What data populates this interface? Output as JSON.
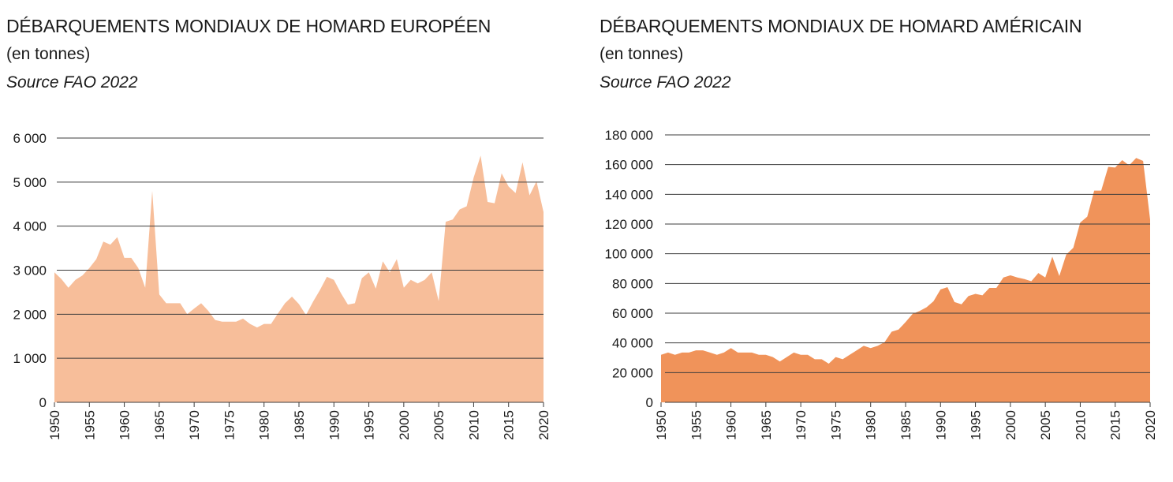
{
  "chart_data": [
    {
      "type": "area",
      "title": "DÉBARQUEMENTS MONDIAUX DE HOMARD EUROPÉEN",
      "subtitle": "(en tonnes)",
      "source": "Source FAO 2022",
      "xlabel": "",
      "ylabel": "",
      "xlim": [
        1950,
        2020
      ],
      "ylim": [
        0,
        6000
      ],
      "y_ticks": [
        0,
        1000,
        2000,
        3000,
        4000,
        5000,
        6000
      ],
      "y_tick_labels": [
        "0",
        "1 000",
        "2 000",
        "3 000",
        "4 000",
        "5 000",
        "6 000"
      ],
      "x_ticks": [
        1950,
        1955,
        1960,
        1965,
        1970,
        1975,
        1980,
        1985,
        1990,
        1995,
        2000,
        2005,
        2010,
        2015,
        2020
      ],
      "x_tick_labels": [
        "1950",
        "1955",
        "1960",
        "1965",
        "1970",
        "1975",
        "1980",
        "1985",
        "1990",
        "1995",
        "2000",
        "2005",
        "2010",
        "2015",
        "2020"
      ],
      "grid": true,
      "color": "#f7be9a",
      "x": [
        1950,
        1951,
        1952,
        1953,
        1954,
        1955,
        1956,
        1957,
        1958,
        1959,
        1960,
        1961,
        1962,
        1963,
        1964,
        1965,
        1966,
        1967,
        1968,
        1969,
        1970,
        1971,
        1972,
        1973,
        1974,
        1975,
        1976,
        1977,
        1978,
        1979,
        1980,
        1981,
        1982,
        1983,
        1984,
        1985,
        1986,
        1987,
        1988,
        1989,
        1990,
        1991,
        1992,
        1993,
        1994,
        1995,
        1996,
        1997,
        1998,
        1999,
        2000,
        2001,
        2002,
        2003,
        2004,
        2005,
        2006,
        2007,
        2008,
        2009,
        2010,
        2011,
        2012,
        2013,
        2014,
        2015,
        2016,
        2017,
        2018,
        2019,
        2020
      ],
      "values": [
        2950,
        2800,
        2600,
        2780,
        2880,
        3050,
        3250,
        3650,
        3580,
        3750,
        3280,
        3280,
        3050,
        2600,
        4800,
        2450,
        2250,
        2250,
        2250,
        2000,
        2130,
        2250,
        2080,
        1870,
        1830,
        1830,
        1830,
        1900,
        1780,
        1700,
        1780,
        1780,
        2020,
        2250,
        2400,
        2230,
        1980,
        2280,
        2550,
        2850,
        2780,
        2480,
        2220,
        2250,
        2820,
        2950,
        2580,
        3200,
        2950,
        3250,
        2600,
        2780,
        2700,
        2780,
        2950,
        2300,
        4100,
        4150,
        4380,
        4450,
        5100,
        5600,
        4550,
        4520,
        5200,
        4900,
        4750,
        5450,
        4700,
        5020,
        4320
      ]
    },
    {
      "type": "area",
      "title": "DÉBARQUEMENTS MONDIAUX DE HOMARD AMÉRICAIN",
      "subtitle": "(en tonnes)",
      "source": "Source FAO 2022",
      "xlabel": "",
      "ylabel": "",
      "xlim": [
        1950,
        2020
      ],
      "ylim": [
        0,
        180000
      ],
      "y_ticks": [
        0,
        20000,
        40000,
        60000,
        80000,
        100000,
        120000,
        140000,
        160000,
        180000
      ],
      "y_tick_labels": [
        "0",
        "20 000",
        "40 000",
        "60 000",
        "80 000",
        "100 000",
        "120 000",
        "140 000",
        "160 000",
        "180 000"
      ],
      "x_ticks": [
        1950,
        1955,
        1960,
        1965,
        1970,
        1975,
        1980,
        1985,
        1990,
        1995,
        2000,
        2005,
        2010,
        2015,
        2020
      ],
      "x_tick_labels": [
        "1950",
        "1955",
        "1960",
        "1965",
        "1970",
        "1975",
        "1980",
        "1985",
        "1990",
        "1995",
        "2000",
        "2005",
        "2010",
        "2015",
        "2020"
      ],
      "grid": true,
      "color": "#f0935a",
      "x": [
        1950,
        1951,
        1952,
        1953,
        1954,
        1955,
        1956,
        1957,
        1958,
        1959,
        1960,
        1961,
        1962,
        1963,
        1964,
        1965,
        1966,
        1967,
        1968,
        1969,
        1970,
        1971,
        1972,
        1973,
        1974,
        1975,
        1976,
        1977,
        1978,
        1979,
        1980,
        1981,
        1982,
        1983,
        1984,
        1985,
        1986,
        1987,
        1988,
        1989,
        1990,
        1991,
        1992,
        1993,
        1994,
        1995,
        1996,
        1997,
        1998,
        1999,
        2000,
        2001,
        2002,
        2003,
        2004,
        2005,
        2006,
        2007,
        2008,
        2009,
        2010,
        2011,
        2012,
        2013,
        2014,
        2015,
        2016,
        2017,
        2018,
        2019,
        2020
      ],
      "values": [
        32000,
        33500,
        32000,
        33500,
        33500,
        35000,
        35000,
        33500,
        32000,
        33500,
        36500,
        33500,
        33500,
        33500,
        32000,
        32000,
        30500,
        27500,
        30500,
        33500,
        32000,
        32000,
        29000,
        29000,
        26000,
        30500,
        29000,
        32000,
        35000,
        38000,
        36500,
        38000,
        40500,
        47500,
        49000,
        54000,
        59500,
        61500,
        64000,
        68000,
        76000,
        77500,
        67500,
        66000,
        71500,
        73000,
        72000,
        77000,
        77000,
        84000,
        85500,
        84000,
        83000,
        81500,
        87000,
        84000,
        98000,
        85000,
        99500,
        104000,
        121000,
        125000,
        142500,
        142500,
        158500,
        158000,
        163000,
        159500,
        164500,
        162500,
        123000
      ]
    }
  ]
}
